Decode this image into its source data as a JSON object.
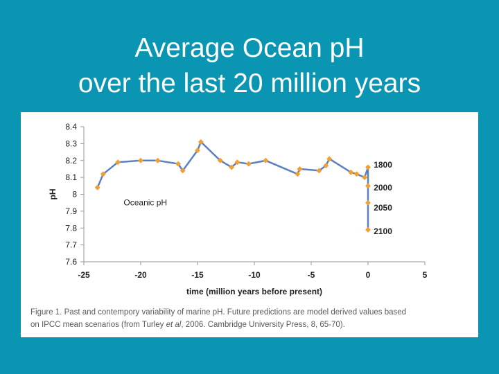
{
  "slide": {
    "title_line1": "Average Ocean pH",
    "title_line2": "over the last 20 million years"
  },
  "colors": {
    "background": "#0a95b3",
    "line": "#5b7fc1",
    "marker": "#f0a030",
    "axis": "#999999",
    "text": "#222222"
  },
  "chart_data": {
    "type": "line",
    "title": "",
    "xlabel": "time (million years before present)",
    "ylabel": "pH",
    "xlim": [
      -25,
      5
    ],
    "ylim": [
      7.6,
      8.4
    ],
    "x_ticks": [
      -25,
      -20,
      -15,
      -10,
      -5,
      0,
      5
    ],
    "x_tick_labels": [
      "-25",
      "-20",
      "-15",
      "-10",
      "-5",
      "0",
      "5"
    ],
    "y_ticks": [
      7.6,
      7.7,
      7.8,
      7.9,
      8.0,
      8.1,
      8.2,
      8.3,
      8.4
    ],
    "y_tick_labels": [
      "7.6",
      "7.7",
      "7.8",
      "7.9",
      "8",
      "8.1",
      "8.2",
      "8.3",
      "8.4"
    ],
    "grid": false,
    "series": [
      {
        "name": "Oceanic pH",
        "x": [
          -23.8,
          -23.3,
          -22,
          -20,
          -18.5,
          -16.7,
          -16.3,
          -15,
          -14.7,
          -13,
          -12,
          -11.5,
          -10.5,
          -9,
          -6.2,
          -6,
          -4.3,
          -3.7,
          -3.4,
          -1.5,
          -1,
          -0.3,
          0,
          0,
          0,
          0
        ],
        "y": [
          8.04,
          8.12,
          8.19,
          8.2,
          8.2,
          8.18,
          8.14,
          8.26,
          8.31,
          8.2,
          8.16,
          8.19,
          8.18,
          8.2,
          8.12,
          8.15,
          8.14,
          8.17,
          8.21,
          8.13,
          8.12,
          8.1,
          8.16,
          8.05,
          7.95,
          7.79
        ]
      }
    ],
    "annotations": [
      {
        "text": "Oceanic pH",
        "x": -21.5,
        "y": 7.95
      },
      {
        "text": "1800",
        "x": 0.5,
        "y": 8.175
      },
      {
        "text": "2000",
        "x": 0.5,
        "y": 8.04
      },
      {
        "text": "2050",
        "x": 0.5,
        "y": 7.92
      },
      {
        "text": "2100",
        "x": 0.5,
        "y": 7.78
      }
    ]
  },
  "caption": {
    "line1": "Figure 1. Past and contempory variability of marine pH. Future predictions are model derived values based",
    "line2_prefix": "on IPCC mean scenarios (from Turley ",
    "line2_italic": "et al",
    "line2_suffix": ", 2006. Cambridge University Press, 8, 65-70)."
  }
}
